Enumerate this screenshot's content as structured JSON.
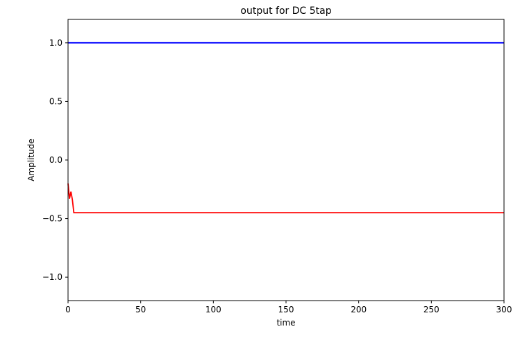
{
  "chart_data": {
    "type": "line",
    "title": "output for DC 5tap",
    "xlabel": "time",
    "ylabel": "Amplitude",
    "xlim": [
      0,
      300
    ],
    "ylim": [
      -1.2,
      1.2
    ],
    "xticks": [
      0,
      50,
      100,
      150,
      200,
      250,
      300
    ],
    "xtick_labels": [
      "0",
      "50",
      "100",
      "150",
      "200",
      "250",
      "300"
    ],
    "yticks": [
      1.0,
      0.5,
      0.0,
      -0.5,
      -1.0
    ],
    "ytick_labels": [
      "1.0",
      "0.5",
      "0.0",
      "−0.5",
      "−1.0"
    ],
    "grid": false,
    "series": [
      {
        "color": "#0000ff",
        "x": [
          0,
          300
        ],
        "y": [
          1.0,
          1.0
        ]
      },
      {
        "color": "#ff0000",
        "x": [
          0,
          1,
          2,
          3,
          4,
          300
        ],
        "y": [
          -0.2,
          -0.33,
          -0.27,
          -0.34,
          -0.45,
          -0.45
        ]
      }
    ]
  }
}
